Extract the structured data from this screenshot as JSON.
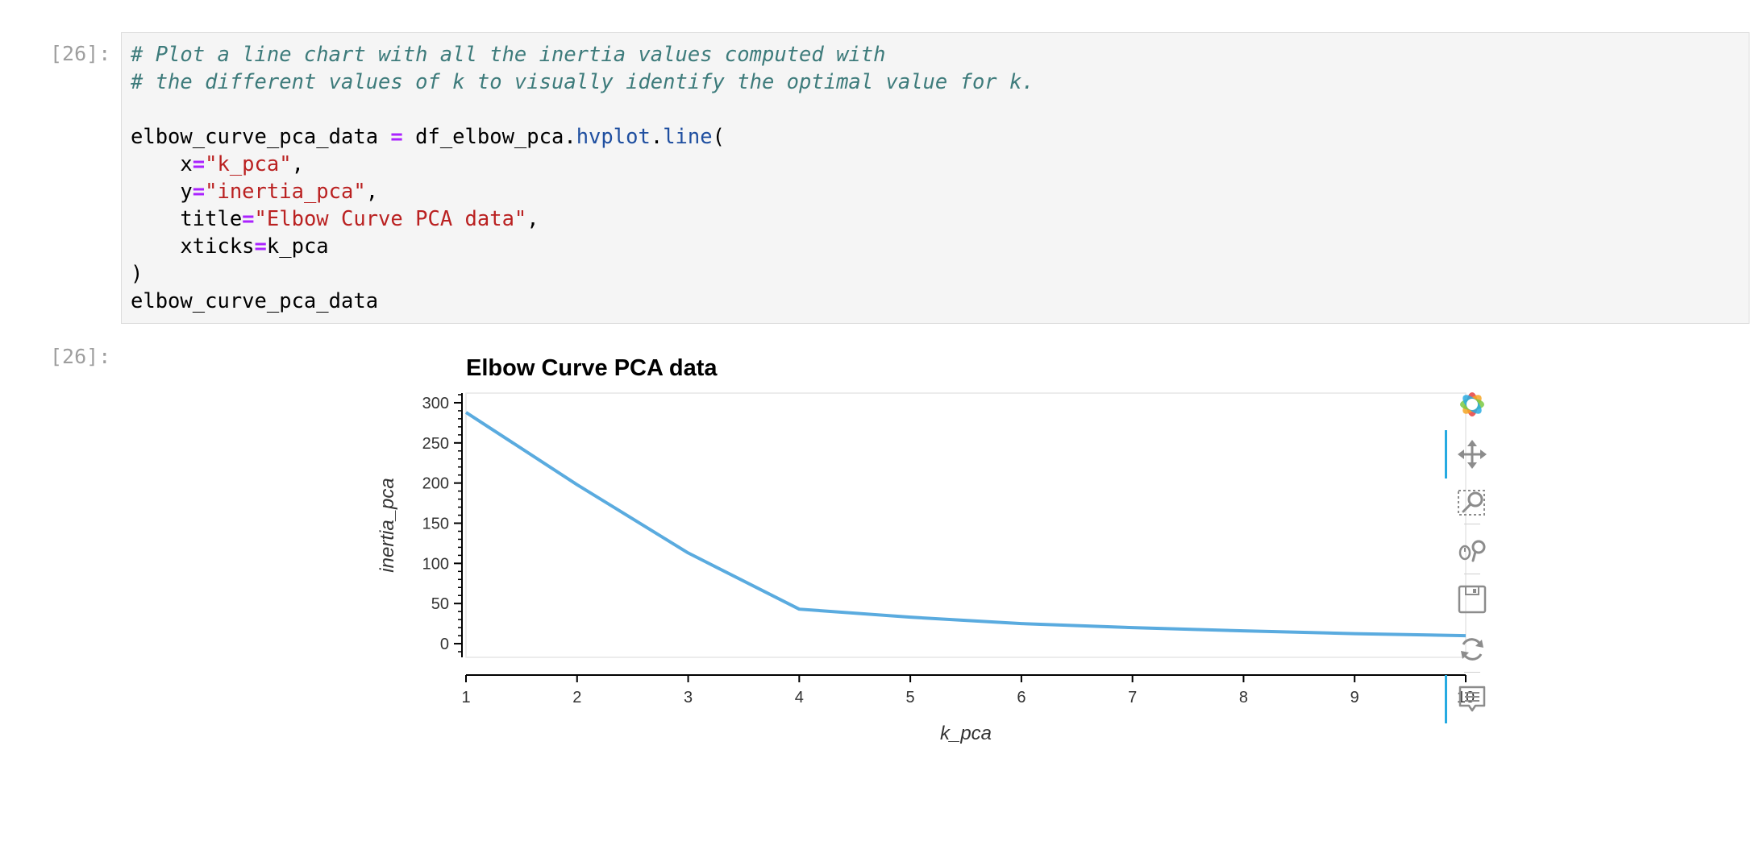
{
  "cells": [
    {
      "prompt": "[26]:",
      "code_lines": [
        [
          {
            "t": "# Plot a line chart with all the inertia values computed with",
            "c": "comment"
          }
        ],
        [
          {
            "t": "# the different values of k to visually identify the optimal value for k.",
            "c": "comment"
          }
        ],
        [
          {
            "t": "",
            "c": "text"
          }
        ],
        [
          {
            "t": "elbow_curve_pca_data ",
            "c": "text"
          },
          {
            "t": "=",
            "c": "op"
          },
          {
            "t": " df_elbow_pca.",
            "c": "text"
          },
          {
            "t": "hvplot",
            "c": "attr"
          },
          {
            "t": ".",
            "c": "text"
          },
          {
            "t": "line",
            "c": "attr"
          },
          {
            "t": "(",
            "c": "text"
          }
        ],
        [
          {
            "t": "    x",
            "c": "text"
          },
          {
            "t": "=",
            "c": "op"
          },
          {
            "t": "\"k_pca\"",
            "c": "str"
          },
          {
            "t": ",",
            "c": "text"
          }
        ],
        [
          {
            "t": "    y",
            "c": "text"
          },
          {
            "t": "=",
            "c": "op"
          },
          {
            "t": "\"inertia_pca\"",
            "c": "str"
          },
          {
            "t": ",",
            "c": "text"
          }
        ],
        [
          {
            "t": "    title",
            "c": "text"
          },
          {
            "t": "=",
            "c": "op"
          },
          {
            "t": "\"Elbow Curve PCA data\"",
            "c": "str"
          },
          {
            "t": ",",
            "c": "text"
          }
        ],
        [
          {
            "t": "    xticks",
            "c": "text"
          },
          {
            "t": "=",
            "c": "op"
          },
          {
            "t": "k_pca",
            "c": "text"
          }
        ],
        [
          {
            "t": ")",
            "c": "text"
          }
        ],
        [
          {
            "t": "elbow_curve_pca_data",
            "c": "text"
          }
        ]
      ]
    }
  ],
  "output": {
    "prompt": "[26]:"
  },
  "chart_data": {
    "type": "line",
    "title": "Elbow Curve PCA data",
    "xlabel": "k_pca",
    "ylabel": "inertia_pca",
    "x": [
      1,
      2,
      3,
      4,
      5,
      6,
      7,
      8,
      9,
      10
    ],
    "series": [
      {
        "values": [
          288,
          198,
          113,
          43,
          33,
          25,
          20,
          16,
          12.5,
          10
        ],
        "color": "#5aabdf"
      }
    ],
    "xticks": [
      "1",
      "2",
      "3",
      "4",
      "5",
      "6",
      "7",
      "8",
      "9",
      "10"
    ],
    "yticks": [
      "0",
      "50",
      "100",
      "150",
      "200",
      "250",
      "300"
    ],
    "xlim": [
      1,
      10
    ],
    "ylim": [
      -17,
      312
    ],
    "grid": false
  },
  "toolbar": {
    "tools": [
      {
        "name": "bokeh-logo-icon"
      },
      {
        "name": "pan-icon"
      },
      {
        "name": "box-zoom-icon"
      },
      {
        "name": "wheel-zoom-icon"
      },
      {
        "name": "save-icon"
      },
      {
        "name": "reset-icon"
      },
      {
        "name": "hover-icon"
      }
    ],
    "accent": "#26aae1"
  }
}
